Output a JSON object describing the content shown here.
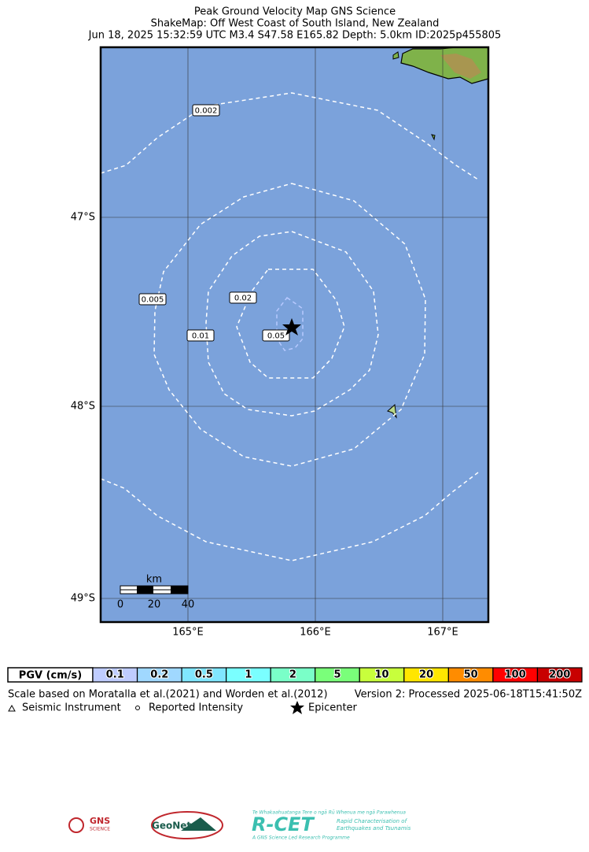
{
  "header": {
    "title": "Peak Ground Velocity Map GNS Science",
    "subtitle": "ShakeMap: Off West Coast of South Island, New Zealand",
    "event": "Jun 18, 2025 15:32:59 UTC M3.4 S47.58 E165.82 Depth: 5.0km ID:2025p455805"
  },
  "map": {
    "latitudes": [
      "47°S",
      "48°S",
      "49°S"
    ],
    "longitudes": [
      "165°E",
      "166°E",
      "167°E"
    ],
    "contours": [
      "0.002",
      "0.005",
      "0.01",
      "0.02",
      "0.05"
    ],
    "scale_bar": {
      "unit": "km",
      "ticks": [
        "0",
        "20",
        "40"
      ]
    }
  },
  "legend": {
    "title": "PGV (cm/s)",
    "items": [
      {
        "label": "0.1",
        "color": "#bfccff"
      },
      {
        "label": "0.2",
        "color": "#a0d8ff"
      },
      {
        "label": "0.5",
        "color": "#80e6ff"
      },
      {
        "label": "1",
        "color": "#7affff"
      },
      {
        "label": "2",
        "color": "#7affc8"
      },
      {
        "label": "5",
        "color": "#7aff7a"
      },
      {
        "label": "10",
        "color": "#c8ff3c"
      },
      {
        "label": "20",
        "color": "#ffe600"
      },
      {
        "label": "50",
        "color": "#ff8c00"
      },
      {
        "label": "100",
        "color": "#ff0000"
      },
      {
        "label": "200",
        "color": "#c80000"
      }
    ]
  },
  "footer": {
    "note": "Scale based on Moratalla et al.(2021) and Worden et al.(2012)",
    "version": "Version 2: Processed 2025-06-18T15:41:50Z",
    "symbols": [
      "Seismic Instrument",
      "Reported Intensity",
      "Epicenter"
    ]
  },
  "logos": {
    "gns": "GNS",
    "gns_sub": "SCIENCE",
    "geonet": "GeoNet",
    "rcet": "R-CET",
    "rcet_maori": "Te Whakaahuatanga Tere o ngā Rū Whenua me ngā Parawhenua",
    "rcet_desc1": "Rapid Characterisation of",
    "rcet_desc2": "Earthquakes and Tsunamis",
    "rcet_foot": "A GNS Science Led Research Programme"
  }
}
